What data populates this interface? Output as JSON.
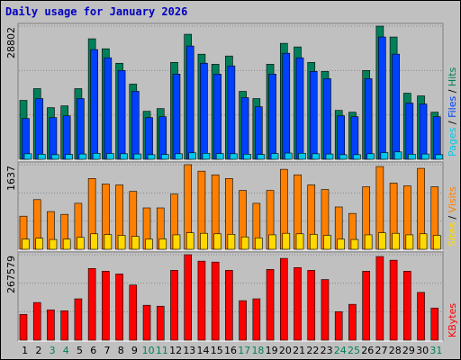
{
  "chart_data": {
    "type": "bar",
    "title": "Daily usage for January 2026",
    "categories": [
      "1",
      "2",
      "3",
      "4",
      "5",
      "6",
      "7",
      "8",
      "9",
      "10",
      "11",
      "12",
      "13",
      "14",
      "15",
      "16",
      "17",
      "18",
      "19",
      "20",
      "21",
      "22",
      "23",
      "24",
      "25",
      "26",
      "27",
      "28",
      "29",
      "30",
      "31"
    ],
    "category_colors": [
      "#000000",
      "#000000",
      "#00805a",
      "#00805a",
      "#000000",
      "#000000",
      "#000000",
      "#000000",
      "#000000",
      "#00805a",
      "#00805a",
      "#000000",
      "#000000",
      "#000000",
      "#000000",
      "#000000",
      "#00805a",
      "#00805a",
      "#000000",
      "#000000",
      "#000000",
      "#000000",
      "#000000",
      "#00805a",
      "#00805a",
      "#000000",
      "#000000",
      "#000000",
      "#000000",
      "#000000",
      "#00805a"
    ],
    "legend_separator": " / ",
    "panels": [
      {
        "max": 28802,
        "series": [
          {
            "name": "Pages",
            "color": "#00c8e8",
            "values": [
              1200,
              1100,
              1000,
              1050,
              1150,
              1300,
              1250,
              1200,
              1150,
              1000,
              1050,
              1200,
              1400,
              1300,
              1250,
              1200,
              1100,
              1050,
              1250,
              1350,
              1300,
              1200,
              1150,
              1000,
              1000,
              1200,
              1450,
              1600,
              1100,
              1150,
              1000
            ]
          },
          {
            "name": "Files",
            "color": "#0040ff",
            "values": [
              8820,
              13130,
              9020,
              9410,
              13130,
              23720,
              21950,
              19210,
              14700,
              9020,
              9210,
              18420,
              24500,
              20780,
              18420,
              20190,
              13330,
              11370,
              18420,
              22930,
              21950,
              19010,
              17440,
              9410,
              9210,
              17440,
              26460,
              22740,
              12150,
              11960,
              9210
            ]
          },
          {
            "name": "Hits",
            "color": "#00805a",
            "values": [
              12740,
              15280,
              11170,
              11560,
              15280,
              26060,
              23900,
              20770,
              16260,
              10380,
              10970,
              20960,
              27040,
              22730,
              20570,
              22340,
              14690,
              13130,
              20570,
              25080,
              24300,
              20960,
              19000,
              10580,
              10190,
              19200,
              28802,
              26450,
              14300,
              13720,
              10190
            ]
          }
        ]
      },
      {
        "max": 1637,
        "series": [
          {
            "name": "Sites",
            "color": "#ffd800",
            "values": [
              196,
              214,
              190,
              196,
              230,
              300,
              285,
              270,
              250,
              196,
              200,
              280,
              320,
              310,
              300,
              290,
              240,
              220,
              280,
              310,
              300,
              290,
              270,
              196,
              190,
              280,
              320,
              310,
              280,
              300,
              270
            ]
          },
          {
            "name": "Visits",
            "color": "#ff8000",
            "values": [
              641,
              961,
              730,
              676,
              890,
              1370,
              1263,
              1246,
              1121,
              801,
              801,
              1068,
              1637,
              1512,
              1441,
              1370,
              1139,
              890,
              1139,
              1548,
              1441,
              1246,
              1157,
              819,
              694,
              1210,
              1601,
              1281,
              1228,
              1566,
              1210
            ]
          }
        ]
      },
      {
        "max": 267579,
        "series": [
          {
            "name": "KBytes",
            "color": "#ff0000",
            "values": [
              80560,
              117960,
              94940,
              92060,
              129470,
              224400,
              215780,
              207150,
              172620,
              109330,
              106450,
              218650,
              267579,
              247430,
              244550,
              218650,
              123710,
              129470,
              221530,
              256060,
              227290,
              218650,
              189890,
              89190,
              112200,
              215780,
              261810,
              250300,
              215780,
              149610,
              100700
            ]
          }
        ]
      }
    ]
  }
}
